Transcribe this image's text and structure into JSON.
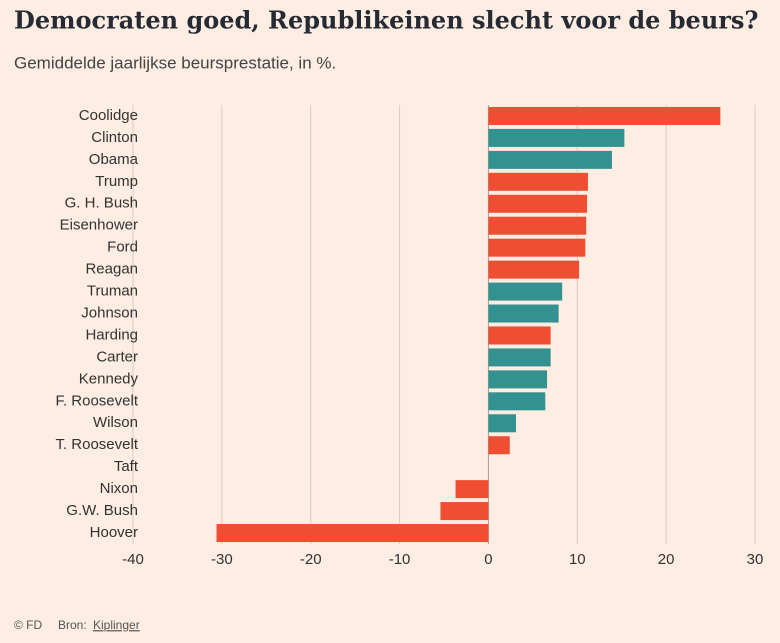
{
  "chart_data": {
    "type": "hbar",
    "title": "Democraten goed, Republikeinen slecht voor de beurs?",
    "subtitle": "Gemiddelde jaarlijkse beursprestatie, in %.",
    "categories": [
      "Coolidge",
      "Clinton",
      "Obama",
      "Trump",
      "G. H. Bush",
      "Eisenhower",
      "Ford",
      "Reagan",
      "Truman",
      "Johnson",
      "Harding",
      "Carter",
      "Kennedy",
      "F. Roosevelt",
      "Wilson",
      "T. Roosevelt",
      "Taft",
      "Nixon",
      "G.W. Bush",
      "Hoover"
    ],
    "values": [
      26.1,
      15.3,
      13.9,
      11.2,
      11.1,
      11.0,
      10.9,
      10.2,
      8.3,
      7.9,
      7.0,
      7.0,
      6.6,
      6.4,
      3.1,
      2.4,
      0,
      -3.7,
      -5.4,
      -30.6
    ],
    "colors": [
      "#f04e33",
      "#33918f",
      "#33918f",
      "#f04e33",
      "#f04e33",
      "#f04e33",
      "#f04e33",
      "#f04e33",
      "#33918f",
      "#33918f",
      "#f04e33",
      "#33918f",
      "#33918f",
      "#33918f",
      "#33918f",
      "#f04e33",
      "#f04e33",
      "#f04e33",
      "#f04e33",
      "#f04e33"
    ],
    "xlim": [
      -40,
      30
    ],
    "xticks": [
      -40,
      -30,
      -20,
      -10,
      0,
      10,
      20,
      30
    ],
    "grid": true,
    "credit": "© FD",
    "source_label": "Bron:",
    "source": "Kiplinger"
  }
}
